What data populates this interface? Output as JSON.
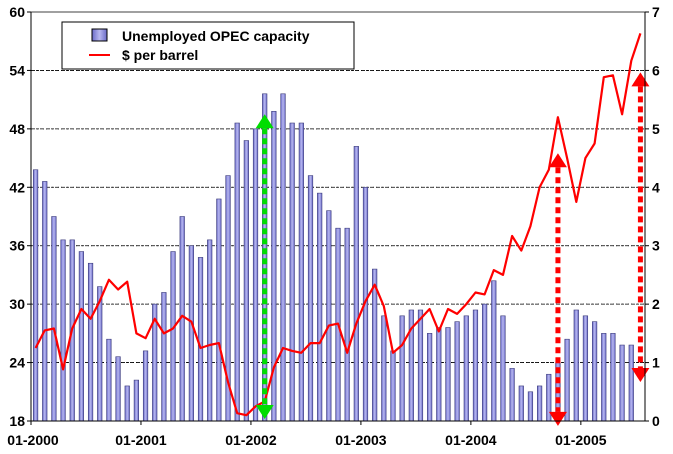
{
  "chart_data": {
    "type": "bar",
    "x_tick_labels": [
      "01-2000",
      "01-2001",
      "01-2002",
      "01-2003",
      "01-2004",
      "01-2005"
    ],
    "x_tick_months": [
      0,
      12,
      24,
      36,
      48,
      60
    ],
    "x_range_months": [
      0,
      67
    ],
    "y_left": {
      "ticks": [
        18,
        24,
        30,
        36,
        42,
        48,
        54,
        60
      ],
      "range": [
        18,
        60
      ]
    },
    "y_right": {
      "ticks": [
        0,
        1,
        2,
        3,
        4,
        5,
        6,
        7
      ],
      "range": [
        0,
        7
      ]
    },
    "grid": "horizontal-dashed",
    "legend_position": "top-left",
    "series": [
      {
        "name": "Unemployed OPEC capacity",
        "kind": "bar",
        "axis": "right",
        "color": "#9a9ae0",
        "x": [
          0,
          1,
          2,
          3,
          4,
          5,
          6,
          7,
          8,
          9,
          10,
          11,
          12,
          13,
          14,
          15,
          16,
          17,
          18,
          19,
          20,
          21,
          22,
          23,
          24,
          25,
          26,
          27,
          28,
          29,
          30,
          31,
          32,
          33,
          34,
          35,
          36,
          37,
          38,
          39,
          40,
          41,
          42,
          43,
          44,
          45,
          46,
          47,
          48,
          49,
          50,
          51,
          52,
          53,
          54,
          55,
          56,
          57,
          58,
          59,
          60,
          61,
          62,
          63,
          64,
          65
        ],
        "values": [
          4.3,
          4.1,
          3.5,
          3.1,
          3.1,
          2.9,
          2.7,
          2.3,
          1.4,
          1.1,
          0.6,
          0.7,
          1.2,
          2.0,
          2.2,
          2.9,
          3.5,
          3.0,
          2.8,
          3.1,
          3.8,
          4.2,
          5.1,
          4.8,
          5.0,
          5.6,
          5.3,
          5.6,
          5.1,
          5.1,
          4.2,
          3.9,
          3.6,
          3.3,
          3.3,
          4.7,
          4.0,
          2.6,
          1.8,
          1.2,
          1.8,
          1.9,
          1.9,
          1.5,
          1.6,
          1.6,
          1.7,
          1.8,
          1.9,
          2.0,
          2.4,
          1.8,
          0.9,
          0.6,
          0.5,
          0.6,
          0.8,
          1.0,
          1.4,
          1.9,
          1.8,
          1.7,
          1.5,
          1.5,
          1.3,
          1.3
        ]
      },
      {
        "name": "$ per barrel",
        "kind": "line",
        "axis": "left",
        "color": "#ff0000",
        "x": [
          0,
          1,
          2,
          3,
          4,
          5,
          6,
          7,
          8,
          9,
          10,
          11,
          12,
          13,
          14,
          15,
          16,
          17,
          18,
          19,
          20,
          21,
          22,
          23,
          24,
          25,
          26,
          27,
          28,
          29,
          30,
          31,
          32,
          33,
          34,
          35,
          36,
          37,
          38,
          39,
          40,
          41,
          42,
          43,
          44,
          45,
          46,
          47,
          48,
          49,
          50,
          51,
          52,
          53,
          54,
          55,
          56,
          57,
          58,
          59,
          60,
          61,
          62,
          63,
          64,
          65,
          66
        ],
        "values": [
          25.5,
          27.3,
          27.5,
          23.3,
          27.5,
          29.5,
          28.5,
          30.3,
          32.5,
          31.5,
          32.3,
          27.0,
          26.5,
          28.5,
          27.0,
          27.5,
          28.8,
          28.2,
          25.5,
          25.8,
          26.0,
          22.0,
          18.8,
          18.6,
          19.5,
          20.0,
          23.5,
          25.5,
          25.2,
          25.0,
          26.0,
          26.0,
          27.8,
          28.0,
          25.0,
          28.0,
          30.3,
          32.0,
          29.8,
          25.0,
          25.8,
          27.5,
          28.5,
          29.5,
          27.2,
          29.5,
          29.0,
          30.0,
          31.2,
          31.0,
          33.5,
          33.0,
          37.0,
          35.5,
          38.0,
          42.0,
          43.8,
          49.2,
          45.0,
          40.5,
          45.0,
          46.5,
          53.3,
          53.5,
          49.5,
          55.0,
          57.8
        ]
      }
    ],
    "annotations": [
      {
        "type": "double-arrow",
        "color": "#00dd00",
        "x_month": 25,
        "y_left": [
          18.2,
          49.5
        ]
      },
      {
        "type": "double-arrow",
        "color": "#ff0000",
        "x_month": 57,
        "y_left": [
          17.5,
          45.5
        ]
      },
      {
        "type": "double-arrow",
        "color": "#ff0000",
        "x_month": 66,
        "y_left": [
          22.0,
          53.8
        ]
      }
    ]
  }
}
